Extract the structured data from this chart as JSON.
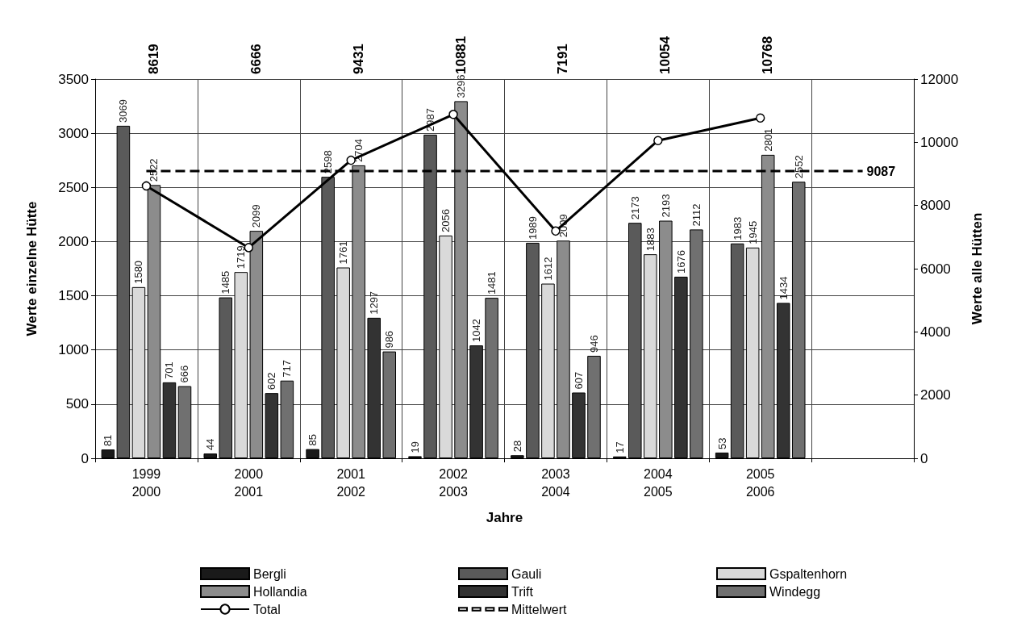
{
  "chart_data": {
    "type": "bar",
    "categories": [
      "1999\n2000",
      "2000\n2001",
      "2001\n2002",
      "2002\n2003",
      "2003\n2004",
      "2004\n2005",
      "2005\n2006",
      null
    ],
    "series": [
      {
        "name": "Bergli",
        "color": "#1a1a1a",
        "values": [
          81,
          44,
          85,
          19,
          28,
          17,
          53,
          null
        ],
        "value_labels": [
          "81",
          "44",
          "85",
          "19",
          "28",
          "17",
          "53",
          null
        ]
      },
      {
        "name": "Gauli",
        "color": "#5a5a5a",
        "values": [
          3069,
          1485,
          2598,
          2987,
          1989,
          2173,
          1983,
          null
        ],
        "value_labels": [
          "3069",
          "1485",
          "2598",
          "2987",
          "1989",
          "2173",
          "1983",
          null
        ]
      },
      {
        "name": "Gspaltenhorn",
        "color": "#d9d9d9",
        "values": [
          1580,
          1719,
          1761,
          2056,
          1612,
          1883,
          1945,
          null
        ],
        "value_labels": [
          "1580",
          "1719",
          "1761",
          "2056",
          "1612",
          "1883",
          "1945",
          null
        ]
      },
      {
        "name": "Hollandia",
        "color": "#8c8c8c",
        "values": [
          2522,
          2099,
          2704,
          3296,
          2009,
          2193,
          2801,
          null
        ],
        "value_labels": [
          "2522",
          "2099",
          "2704",
          "3296",
          "2009",
          "2193",
          "2801",
          null
        ]
      },
      {
        "name": "Trift",
        "color": "#333333",
        "values": [
          701,
          602,
          1297,
          1042,
          607,
          1676,
          1434,
          null
        ],
        "value_labels": [
          "701",
          "602",
          "1297",
          "1042",
          "607",
          "1676",
          "1434",
          null
        ]
      },
      {
        "name": "Windegg",
        "color": "#707070",
        "values": [
          666,
          717,
          986,
          1481,
          946,
          2112,
          2552,
          null
        ],
        "value_labels": [
          "666",
          "717",
          "986",
          "1481",
          "946",
          "2112",
          "2552",
          null
        ]
      },
      {
        "name": "Total",
        "type": "line",
        "axis": "y2",
        "color": "#000000",
        "marker": "circle",
        "line_style": "solid",
        "values": [
          8619,
          6666,
          9431,
          10881,
          7191,
          10054,
          10768,
          null
        ]
      },
      {
        "name": "Mittelwert",
        "type": "line",
        "axis": "y2",
        "color": "#000000",
        "marker": "none",
        "line_style": "dashed",
        "values": [
          9087,
          9087,
          9087,
          9087,
          9087,
          9087,
          9087,
          9087
        ],
        "value_labels": [
          null,
          null,
          null,
          null,
          null,
          null,
          null,
          "9087"
        ]
      }
    ],
    "annotations": [
      "8619",
      "6666",
      "9431",
      "10881",
      "7191",
      "10054",
      "10768"
    ],
    "xlabel": "Jahre",
    "ylabel": "Werte einzelne Hütte",
    "y2label": "Werte alle Hütten",
    "ylim": [
      0,
      3500
    ],
    "yticks": [
      0,
      500,
      1000,
      1500,
      2000,
      2500,
      3000,
      3500
    ],
    "y2lim": [
      0,
      12000
    ],
    "y2ticks": [
      0,
      2000,
      4000,
      6000,
      8000,
      10000,
      12000
    ],
    "grid": true,
    "legend": "bottom"
  }
}
